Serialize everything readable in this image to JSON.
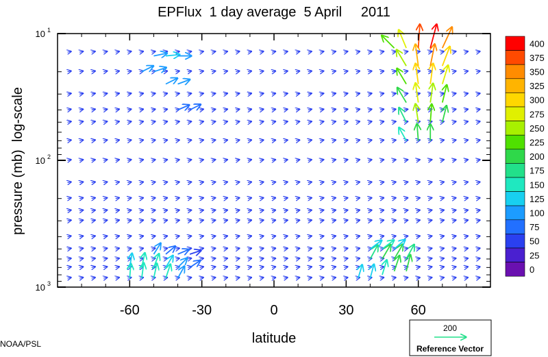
{
  "chart_data": {
    "type": "vector-field",
    "title": "EPFlux  1 day average  5 April     2011",
    "xlabel": "latitude",
    "ylabel": "pressure (mb)  log-scale",
    "xlim": [
      -90,
      90
    ],
    "ylim_mb": [
      1000,
      10
    ],
    "y_scale": "log",
    "x_ticks": [
      {
        "value": -60,
        "label": "-60"
      },
      {
        "value": -30,
        "label": "-30"
      },
      {
        "value": 0,
        "label": "0"
      },
      {
        "value": 30,
        "label": "30"
      },
      {
        "value": 60,
        "label": "60"
      }
    ],
    "y_ticks": [
      {
        "value": 10,
        "base": "10",
        "exp": "1"
      },
      {
        "value": 100,
        "base": "10",
        "exp": "2"
      },
      {
        "value": 1000,
        "base": "10",
        "exp": "3"
      }
    ],
    "colorbar": {
      "levels": [
        "400",
        "375",
        "350",
        "325",
        "300",
        "275",
        "250",
        "225",
        "200",
        "175",
        "150",
        "125",
        "100",
        "75",
        "50",
        "25",
        "0"
      ],
      "colors": [
        "#ff0000",
        "#ff4a00",
        "#ff8c00",
        "#ffb400",
        "#ffd700",
        "#e0f000",
        "#a8f000",
        "#4fe000",
        "#2fd84a",
        "#22e08a",
        "#1fe8c0",
        "#18d0f0",
        "#1c9cff",
        "#2270ff",
        "#2a40f0",
        "#4a20d0",
        "#6a10b0"
      ]
    },
    "reference_vector": {
      "magnitude": "200",
      "label": "Reference Vector"
    },
    "credit": "NOAA/PSL",
    "vectors": [
      {
        "lat": -60,
        "p": 850,
        "u": 0.1,
        "v": 1.3,
        "mag": 140
      },
      {
        "lat": -55,
        "p": 850,
        "u": 0.2,
        "v": 1.5,
        "mag": 160
      },
      {
        "lat": -50,
        "p": 850,
        "u": 0.3,
        "v": 1.4,
        "mag": 150
      },
      {
        "lat": -45,
        "p": 850,
        "u": 0.4,
        "v": 1.2,
        "mag": 140
      },
      {
        "lat": -40,
        "p": 850,
        "u": 0.5,
        "v": 0.9,
        "mag": 110
      },
      {
        "lat": -60,
        "p": 700,
        "u": 0.2,
        "v": 1.2,
        "mag": 130
      },
      {
        "lat": -55,
        "p": 700,
        "u": 0.3,
        "v": 1.4,
        "mag": 145
      },
      {
        "lat": -50,
        "p": 700,
        "u": 0.5,
        "v": 1.3,
        "mag": 140
      },
      {
        "lat": -45,
        "p": 700,
        "u": 0.6,
        "v": 1.0,
        "mag": 120
      },
      {
        "lat": -40,
        "p": 700,
        "u": 0.7,
        "v": 0.7,
        "mag": 100
      },
      {
        "lat": -35,
        "p": 700,
        "u": 0.6,
        "v": 0.4,
        "mag": 80
      },
      {
        "lat": -50,
        "p": 550,
        "u": 0.5,
        "v": 0.8,
        "mag": 95
      },
      {
        "lat": -45,
        "p": 550,
        "u": 0.6,
        "v": 0.5,
        "mag": 80
      },
      {
        "lat": -40,
        "p": 550,
        "u": 0.7,
        "v": 0.3,
        "mag": 70
      },
      {
        "lat": -35,
        "p": 550,
        "u": 0.6,
        "v": 0.2,
        "mag": 60
      },
      {
        "lat": -50,
        "p": 15,
        "u": 1.0,
        "v": 0.2,
        "mag": 110
      },
      {
        "lat": -45,
        "p": 15,
        "u": 1.1,
        "v": 0.1,
        "mag": 120
      },
      {
        "lat": -40,
        "p": 15,
        "u": 1.0,
        "v": 0.0,
        "mag": 110
      },
      {
        "lat": -55,
        "p": 20,
        "u": 0.8,
        "v": 0.4,
        "mag": 95
      },
      {
        "lat": -50,
        "p": 20,
        "u": 0.9,
        "v": 0.3,
        "mag": 100
      },
      {
        "lat": -45,
        "p": 25,
        "u": 0.8,
        "v": 0.4,
        "mag": 95
      },
      {
        "lat": -40,
        "p": 25,
        "u": 0.8,
        "v": 0.3,
        "mag": 90
      },
      {
        "lat": -40,
        "p": 40,
        "u": 0.7,
        "v": 0.3,
        "mag": 80
      },
      {
        "lat": -35,
        "p": 40,
        "u": 0.6,
        "v": 0.3,
        "mag": 70
      },
      {
        "lat": 35,
        "p": 850,
        "u": 0.3,
        "v": 1.0,
        "mag": 120
      },
      {
        "lat": 40,
        "p": 850,
        "u": 0.3,
        "v": 1.1,
        "mag": 130
      },
      {
        "lat": 45,
        "p": 800,
        "u": 0.4,
        "v": 1.3,
        "mag": 160
      },
      {
        "lat": 50,
        "p": 750,
        "u": 0.5,
        "v": 1.5,
        "mag": 190
      },
      {
        "lat": 55,
        "p": 750,
        "u": 0.4,
        "v": 1.6,
        "mag": 200
      },
      {
        "lat": 40,
        "p": 600,
        "u": 0.6,
        "v": 1.1,
        "mag": 170
      },
      {
        "lat": 45,
        "p": 600,
        "u": 0.7,
        "v": 1.2,
        "mag": 190
      },
      {
        "lat": 50,
        "p": 600,
        "u": 0.7,
        "v": 1.2,
        "mag": 200
      },
      {
        "lat": 55,
        "p": 600,
        "u": 0.6,
        "v": 1.1,
        "mag": 185
      },
      {
        "lat": 40,
        "p": 500,
        "u": 0.8,
        "v": 0.6,
        "mag": 130
      },
      {
        "lat": 45,
        "p": 500,
        "u": 0.8,
        "v": 0.6,
        "mag": 140
      },
      {
        "lat": 50,
        "p": 500,
        "u": 0.7,
        "v": 0.6,
        "mag": 130
      },
      {
        "lat": 55,
        "p": 70,
        "u": -0.5,
        "v": 0.9,
        "mag": 150
      },
      {
        "lat": 60,
        "p": 70,
        "u": -0.1,
        "v": 1.3,
        "mag": 200
      },
      {
        "lat": 65,
        "p": 70,
        "u": 0.0,
        "v": 1.2,
        "mag": 190
      },
      {
        "lat": 55,
        "p": 50,
        "u": -0.5,
        "v": 1.0,
        "mag": 180
      },
      {
        "lat": 60,
        "p": 50,
        "u": -0.2,
        "v": 1.3,
        "mag": 240
      },
      {
        "lat": 65,
        "p": 50,
        "u": 0.1,
        "v": 1.3,
        "mag": 230
      },
      {
        "lat": 70,
        "p": 50,
        "u": 0.3,
        "v": 1.2,
        "mag": 200
      },
      {
        "lat": 55,
        "p": 35,
        "u": -0.6,
        "v": 1.0,
        "mag": 210
      },
      {
        "lat": 60,
        "p": 35,
        "u": -0.2,
        "v": 1.4,
        "mag": 270
      },
      {
        "lat": 65,
        "p": 35,
        "u": 0.2,
        "v": 1.4,
        "mag": 260
      },
      {
        "lat": 70,
        "p": 35,
        "u": 0.3,
        "v": 1.2,
        "mag": 230
      },
      {
        "lat": 55,
        "p": 25,
        "u": -0.6,
        "v": 1.0,
        "mag": 230
      },
      {
        "lat": 60,
        "p": 25,
        "u": -0.2,
        "v": 1.5,
        "mag": 300
      },
      {
        "lat": 65,
        "p": 25,
        "u": 0.2,
        "v": 1.5,
        "mag": 300
      },
      {
        "lat": 70,
        "p": 25,
        "u": 0.4,
        "v": 1.3,
        "mag": 270
      },
      {
        "lat": 55,
        "p": 18,
        "u": -0.6,
        "v": 1.0,
        "mag": 250
      },
      {
        "lat": 60,
        "p": 18,
        "u": -0.2,
        "v": 1.5,
        "mag": 330
      },
      {
        "lat": 65,
        "p": 18,
        "u": 0.3,
        "v": 1.5,
        "mag": 340
      },
      {
        "lat": 70,
        "p": 18,
        "u": 0.5,
        "v": 1.3,
        "mag": 300
      },
      {
        "lat": 50,
        "p": 13,
        "u": -0.8,
        "v": 0.8,
        "mag": 220
      },
      {
        "lat": 55,
        "p": 13,
        "u": -0.5,
        "v": 1.2,
        "mag": 270
      },
      {
        "lat": 60,
        "p": 13,
        "u": 0.1,
        "v": 1.5,
        "mag": 380
      },
      {
        "lat": 65,
        "p": 13,
        "u": 0.4,
        "v": 1.5,
        "mag": 400
      },
      {
        "lat": 70,
        "p": 13,
        "u": 0.6,
        "v": 1.3,
        "mag": 360
      }
    ]
  }
}
